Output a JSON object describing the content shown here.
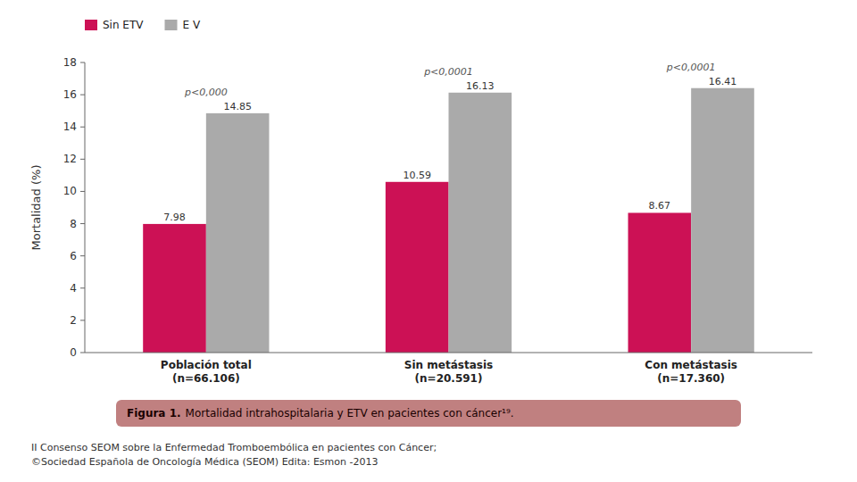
{
  "chart_data": {
    "type": "bar",
    "title": "Figura 1.",
    "subtitle": "Mortalidad intrahospitalaria y ETV en pacientes con cáncer¹⁹.",
    "notes": [
      "II Consenso SEOM sobre la Enfermedad Tromboembólica en pacientes con Cáncer;",
      "©Sociedad Española de Oncología Médica (SEOM) Edita: Esmon -2013"
    ],
    "categories": [
      "Población total\n(n=66.106)",
      "Sin metástasis\n(n=20.591)",
      "Con metástasis\n(n=17.360)"
    ],
    "series": [
      {
        "name": "Sin ETV",
        "color": "#CC1155",
        "values": [
          7.98,
          10.59,
          8.67
        ]
      },
      {
        "name": "E V",
        "color": "#AAAAAA",
        "values": [
          14.85,
          16.13,
          16.41
        ]
      }
    ],
    "annotations": [
      "p<0,000",
      "p<0,0001",
      "p<0,0001"
    ],
    "y_label": "Mortalidad (%)",
    "ylim": [
      0,
      18
    ],
    "yticks": [
      0,
      2,
      4,
      6,
      8,
      10,
      12,
      14,
      16,
      18
    ],
    "grid": false,
    "legend": "top-left",
    "data_labels": true
  }
}
